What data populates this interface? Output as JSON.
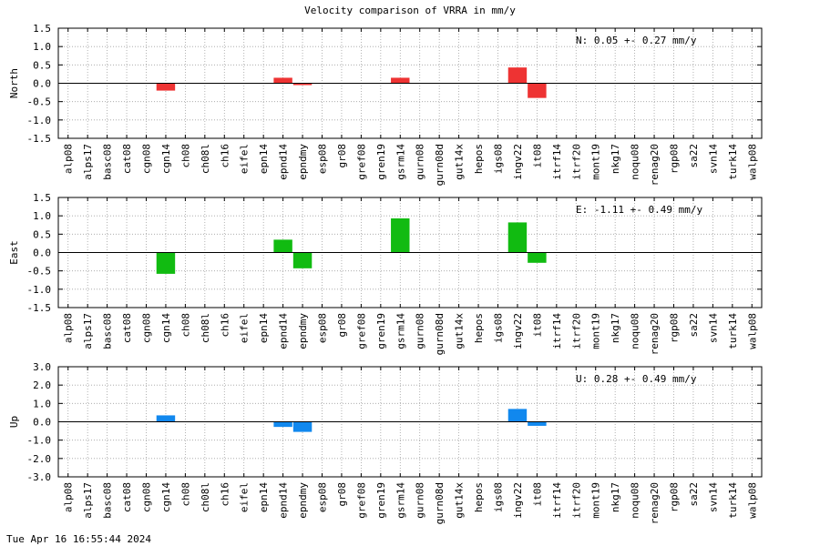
{
  "title": "Velocity comparison of VRRA in mm/y",
  "timestamp": "Tue Apr 16 16:55:44 2024",
  "chart_data": {
    "type": "bar",
    "categories": [
      "alp08",
      "alps17",
      "basc08",
      "cat08",
      "cgn08",
      "cgn14",
      "ch08",
      "ch08l",
      "ch16",
      "eifel",
      "epn14",
      "epnd14",
      "epndmy",
      "esp08",
      "gr08",
      "gref08",
      "gren19",
      "gsrm14",
      "gurn08",
      "gurn08d",
      "gut14x",
      "hepos",
      "igs08",
      "ingv22",
      "it08",
      "itrf14",
      "itrf20",
      "mont19",
      "nkg17",
      "noqu08",
      "renag20",
      "rgp08",
      "sa22",
      "svn14",
      "turk14",
      "walp08"
    ],
    "grid": true,
    "panels": [
      {
        "ylabel": "North",
        "color": "#ee3333",
        "ylim": [
          -1.5,
          1.5
        ],
        "yticks": [
          "1.5",
          "1.0",
          "0.5",
          "0.0",
          "-0.5",
          "-1.0",
          "-1.5"
        ],
        "ytick_values": [
          1.5,
          1.0,
          0.5,
          0.0,
          -0.5,
          -1.0,
          -1.5
        ],
        "summary": "N:   0.05 +-  0.27 mm/y",
        "values": [
          null,
          null,
          null,
          null,
          null,
          -0.2,
          null,
          null,
          null,
          null,
          null,
          0.15,
          -0.05,
          null,
          null,
          null,
          null,
          0.15,
          null,
          null,
          null,
          null,
          null,
          0.43,
          -0.4,
          null,
          null,
          null,
          null,
          null,
          null,
          null,
          null,
          null,
          null,
          null
        ]
      },
      {
        "ylabel": "East",
        "color": "#11bb11",
        "ylim": [
          -1.5,
          1.5
        ],
        "yticks": [
          "1.5",
          "1.0",
          "0.5",
          "0.0",
          "-0.5",
          "-1.0",
          "-1.5"
        ],
        "ytick_values": [
          1.5,
          1.0,
          0.5,
          0.0,
          -0.5,
          -1.0,
          -1.5
        ],
        "summary": "E:  -1.11 +-  0.49 mm/y",
        "values": [
          null,
          null,
          null,
          null,
          null,
          -0.58,
          null,
          null,
          null,
          null,
          null,
          0.35,
          -0.43,
          null,
          null,
          null,
          null,
          0.93,
          null,
          null,
          null,
          null,
          null,
          0.82,
          -0.28,
          null,
          null,
          null,
          null,
          null,
          null,
          null,
          null,
          null,
          null,
          null
        ]
      },
      {
        "ylabel": "Up",
        "color": "#1188ee",
        "ylim": [
          -3.0,
          3.0
        ],
        "yticks": [
          "3.0",
          "2.0",
          "1.0",
          "0.0",
          "-1.0",
          "-2.0",
          "-3.0"
        ],
        "ytick_values": [
          3.0,
          2.0,
          1.0,
          0.0,
          -1.0,
          -2.0,
          -3.0
        ],
        "summary": "U:   0.28 +-  0.49 mm/y",
        "values": [
          null,
          null,
          null,
          null,
          null,
          0.35,
          null,
          null,
          null,
          null,
          null,
          -0.28,
          -0.55,
          null,
          null,
          null,
          null,
          null,
          null,
          null,
          null,
          null,
          null,
          0.7,
          -0.22,
          null,
          null,
          null,
          null,
          null,
          null,
          null,
          null,
          null,
          null,
          null
        ]
      }
    ]
  }
}
